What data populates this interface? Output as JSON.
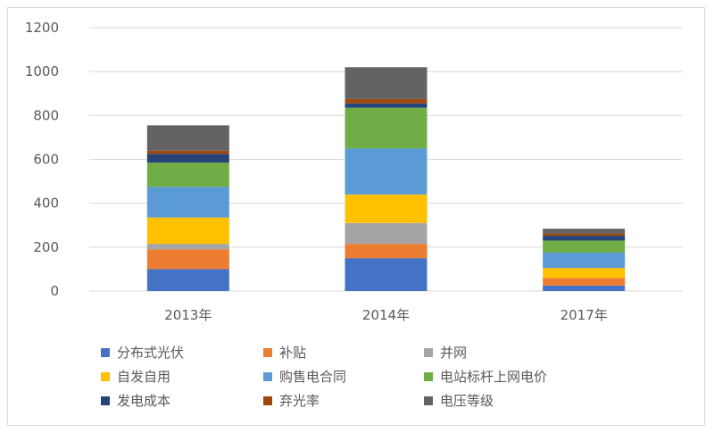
{
  "chart_data": {
    "type": "stacked-bar",
    "title": "",
    "xlabel": "",
    "ylabel": "",
    "categories": [
      "2013年",
      "2014年",
      "2017年"
    ],
    "ylim": [
      0,
      1200
    ],
    "yticks": [
      0,
      200,
      400,
      600,
      800,
      1000,
      1200
    ],
    "grid": true,
    "legend_position": "bottom",
    "series": [
      {
        "name": "分布式光伏",
        "color": "#4472C4",
        "values": [
          100,
          150,
          25
        ]
      },
      {
        "name": "补贴",
        "color": "#ED7D31",
        "values": [
          90,
          65,
          35
        ]
      },
      {
        "name": "并网",
        "color": "#A5A5A5",
        "values": [
          25,
          95,
          0
        ]
      },
      {
        "name": "自发自用",
        "color": "#FFC000",
        "values": [
          120,
          130,
          45
        ]
      },
      {
        "name": "购售电合同",
        "color": "#5B9BD5",
        "values": [
          140,
          210,
          70
        ]
      },
      {
        "name": "电站标杆上网电价",
        "color": "#70AD47",
        "values": [
          110,
          185,
          55
        ]
      },
      {
        "name": "发电成本",
        "color": "#264478",
        "values": [
          40,
          20,
          22
        ]
      },
      {
        "name": "弃光率",
        "color": "#9E480E",
        "values": [
          15,
          20,
          10
        ]
      },
      {
        "name": "电压等级",
        "color": "#636363",
        "values": [
          115,
          145,
          22
        ]
      }
    ]
  }
}
